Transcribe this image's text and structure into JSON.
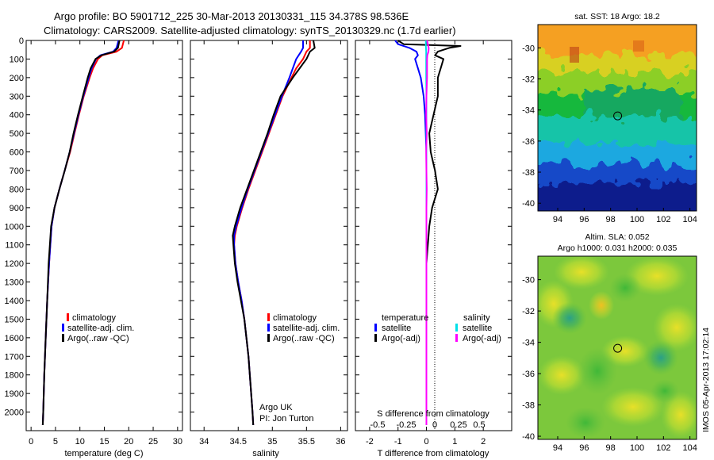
{
  "header": {
    "line1": "Argo profile: BO 5901712_225 30-Mar-2013 20130331_115 34.378S 98.536E",
    "line2": "Climatology: CARS2009. Satellite-adjusted climatology: synTS_20130329.nc (1.7d earlier)"
  },
  "colors": {
    "climatology": "#ff0000",
    "satellite": "#0000ff",
    "argo": "#000000",
    "salinity_satellite": "#00e0e8",
    "salinity_argo": "#ff00ff"
  },
  "chart_data": [
    {
      "id": "temperature",
      "type": "line",
      "xlabel": "temperature (deg C)",
      "ylabel": "",
      "xlim": [
        -1,
        31
      ],
      "ylim": [
        2100,
        0
      ],
      "x_ticks": [
        0,
        5,
        10,
        15,
        20,
        25,
        30
      ],
      "y_ticks": [
        0,
        100,
        200,
        300,
        400,
        500,
        600,
        700,
        800,
        900,
        1000,
        1100,
        1200,
        1300,
        1400,
        1500,
        1600,
        1700,
        1800,
        1900,
        2000
      ],
      "legend": [
        "climatology",
        "satellite-adj. clim.",
        "Argo(..raw -QC)"
      ],
      "legend_loc": "lower-center",
      "series": [
        {
          "name": "climatology",
          "color": "#ff0000",
          "depth": [
            0,
            40,
            60,
            80,
            100,
            150,
            200,
            300,
            400,
            500,
            600,
            700,
            800,
            900,
            1000,
            1200,
            1400,
            1600,
            1800,
            2000,
            2070
          ],
          "values": [
            19.0,
            18.6,
            17.5,
            14.6,
            13.7,
            12.7,
            12.0,
            10.8,
            9.8,
            8.9,
            8.0,
            6.9,
            5.8,
            4.8,
            4.2,
            3.7,
            3.3,
            3.0,
            2.7,
            2.5,
            2.4
          ]
        },
        {
          "name": "satellite-adj. clim.",
          "color": "#0000ff",
          "depth": [
            0,
            40,
            60,
            80,
            100,
            150,
            200,
            300,
            400,
            500,
            600,
            700,
            800,
            900,
            1000,
            1200,
            1400,
            1600,
            1800,
            2000,
            2070
          ],
          "values": [
            17.9,
            17.5,
            16.8,
            14.2,
            13.3,
            12.4,
            11.8,
            10.7,
            9.7,
            8.8,
            7.9,
            6.9,
            5.8,
            4.8,
            4.2,
            3.7,
            3.3,
            3.0,
            2.7,
            2.5,
            2.4
          ]
        },
        {
          "name": "Argo(..raw -QC)",
          "color": "#000000",
          "depth": [
            0,
            40,
            60,
            80,
            100,
            150,
            200,
            300,
            400,
            500,
            600,
            700,
            800,
            900,
            1000,
            1200,
            1400,
            1600,
            1800,
            2000,
            2070
          ],
          "values": [
            18.1,
            17.8,
            17.0,
            14.4,
            13.2,
            12.2,
            11.6,
            10.6,
            9.6,
            8.7,
            7.9,
            6.9,
            5.8,
            4.8,
            4.1,
            3.6,
            3.3,
            3.0,
            2.7,
            2.5,
            2.4
          ]
        }
      ]
    },
    {
      "id": "salinity",
      "type": "line",
      "xlabel": "salinity",
      "ylabel": "",
      "xlim": [
        33.8,
        36.1
      ],
      "ylim": [
        2100,
        0
      ],
      "x_ticks": [
        34,
        34.5,
        35,
        35.5,
        36
      ],
      "legend": [
        "climatology",
        "satellite-adj. clim.",
        "Argo(..raw -QC)"
      ],
      "legend_loc": "lower-right",
      "annotation": [
        "Argo UK",
        "PI: Jon Turton"
      ],
      "series": [
        {
          "name": "climatology",
          "color": "#ff0000",
          "depth": [
            0,
            40,
            60,
            100,
            150,
            200,
            300,
            400,
            500,
            600,
            700,
            800,
            900,
            1000,
            1050,
            1100,
            1200,
            1300,
            1400,
            1500,
            1600,
            1700,
            1800,
            1900,
            2000,
            2070
          ],
          "values": [
            35.55,
            35.55,
            35.5,
            35.45,
            35.35,
            35.28,
            35.15,
            35.05,
            34.95,
            34.85,
            34.75,
            34.65,
            34.56,
            34.48,
            34.45,
            34.44,
            34.46,
            34.5,
            34.55,
            34.59,
            34.62,
            34.65,
            34.67,
            34.69,
            34.71,
            34.72
          ]
        },
        {
          "name": "satellite-adj. clim.",
          "color": "#0000ff",
          "depth": [
            0,
            40,
            60,
            100,
            150,
            200,
            300,
            400,
            500,
            600,
            700,
            800,
            900,
            1000,
            1050,
            1100,
            1200,
            1300,
            1400,
            1500,
            1600,
            1700,
            1800,
            1900,
            2000,
            2070
          ],
          "values": [
            35.45,
            35.45,
            35.42,
            35.35,
            35.3,
            35.25,
            35.14,
            35.04,
            34.94,
            34.84,
            34.74,
            34.64,
            34.55,
            34.47,
            34.44,
            34.44,
            34.46,
            34.5,
            34.55,
            34.59,
            34.62,
            34.65,
            34.67,
            34.69,
            34.71,
            34.72
          ]
        },
        {
          "name": "Argo(..raw -QC)",
          "color": "#000000",
          "depth": [
            0,
            40,
            60,
            100,
            150,
            200,
            300,
            400,
            500,
            600,
            700,
            800,
            900,
            1000,
            1050,
            1100,
            1200,
            1300,
            1400,
            1500,
            1600,
            1700,
            1800,
            1900,
            2000,
            2070
          ],
          "values": [
            35.6,
            35.62,
            35.55,
            35.5,
            35.4,
            35.3,
            35.12,
            35.02,
            34.93,
            34.83,
            34.73,
            34.63,
            34.53,
            34.45,
            34.42,
            34.43,
            34.45,
            34.49,
            34.54,
            34.59,
            34.62,
            34.65,
            34.67,
            34.69,
            34.71,
            34.72
          ]
        }
      ]
    },
    {
      "id": "difference",
      "type": "line",
      "xlabel": "T difference from climatology",
      "top_label": "S difference from climatology",
      "xlim": [
        -2.5,
        3.0
      ],
      "ylim": [
        2100,
        0
      ],
      "x_ticks": [
        -2,
        -1,
        0,
        1,
        2
      ],
      "top_ticks": [
        "-0.5",
        "-0.25",
        "0",
        "0.25",
        "0.5"
      ],
      "legend_temperature_title": "temperature",
      "legend_salinity_title": "salinity",
      "legend": [
        {
          "label": "satellite",
          "color": "#0000ff"
        },
        {
          "label": "Argo(-adj)",
          "color": "#000000"
        },
        {
          "label": "satellite",
          "color": "#00e0e8"
        },
        {
          "label": "Argo(-adj)",
          "color": "#ff00ff"
        }
      ],
      "legend_loc": "lower-center",
      "series": [
        {
          "name": "T satellite",
          "color": "#0000ff",
          "depth": [
            0,
            20,
            40,
            60,
            80,
            100,
            150,
            200,
            300,
            400,
            600,
            800,
            1000,
            1200,
            1500,
            2070
          ],
          "values": [
            -1.1,
            -1.0,
            -0.6,
            -0.35,
            -0.3,
            -0.4,
            -0.3,
            -0.2,
            -0.1,
            -0.05,
            0.0,
            0.0,
            0.0,
            0.0,
            0.0,
            0.0
          ]
        },
        {
          "name": "T Argo",
          "color": "#000000",
          "depth": [
            0,
            20,
            30,
            40,
            60,
            80,
            100,
            150,
            200,
            300,
            400,
            500,
            600,
            700,
            800,
            900,
            1000,
            1100,
            1200,
            1500,
            2070
          ],
          "values": [
            -1.0,
            -0.8,
            1.2,
            0.8,
            0.4,
            0.3,
            0.6,
            0.5,
            0.4,
            0.4,
            0.25,
            0.1,
            0.15,
            0.3,
            0.4,
            0.2,
            0.1,
            0.05,
            0.0,
            0.0,
            0.0
          ]
        },
        {
          "name": "S satellite",
          "color": "#00e0e8",
          "depth": [
            0,
            30,
            60,
            100,
            200,
            300,
            400,
            600,
            800,
            1000,
            1200,
            1500,
            2070
          ],
          "values": [
            -0.02,
            -0.02,
            -0.01,
            -0.01,
            -0.01,
            0.0,
            0.0,
            0.0,
            0.0,
            0.0,
            0.0,
            0.0,
            0.0
          ]
        },
        {
          "name": "S Argo",
          "color": "#ff00ff",
          "depth": [
            0,
            20,
            40,
            60,
            80,
            100,
            200,
            300,
            400,
            500,
            600,
            700,
            800,
            900,
            1000,
            1100,
            1200,
            1500,
            2070
          ],
          "values": [
            0.02,
            0.05,
            0.08,
            0.07,
            0.03,
            0.02,
            0.02,
            0.0,
            -0.01,
            0.01,
            -0.01,
            0.0,
            0.01,
            0.0,
            0.0,
            0.0,
            0.0,
            0.0,
            0.0
          ]
        }
      ]
    },
    {
      "id": "sst_map",
      "type": "heatmap",
      "title": "sat. SST: 18 Argo: 18.2",
      "xlim": [
        92.5,
        104.5
      ],
      "ylim": [
        -40.5,
        -28.5
      ],
      "x_ticks": [
        94,
        96,
        98,
        100,
        102,
        104
      ],
      "y_ticks": [
        -30,
        -32,
        -34,
        -36,
        -38,
        -40
      ],
      "marker": [
        98.536,
        -34.378
      ]
    },
    {
      "id": "sla_map",
      "type": "heatmap",
      "title_line1": "Altim. SLA: 0.052",
      "title_line2": "Argo h1000: 0.031 h2000: 0.035",
      "xlim": [
        92.5,
        104.5
      ],
      "ylim": [
        -40.2,
        -28.5
      ],
      "x_ticks": [
        94,
        96,
        98,
        100,
        102,
        104
      ],
      "y_ticks": [
        -30,
        -32,
        -34,
        -36,
        -38,
        -40
      ],
      "marker": [
        98.536,
        -34.378
      ]
    }
  ],
  "footer": {
    "watermark": "IMOS 05-Apr-2013 17:02:14"
  }
}
